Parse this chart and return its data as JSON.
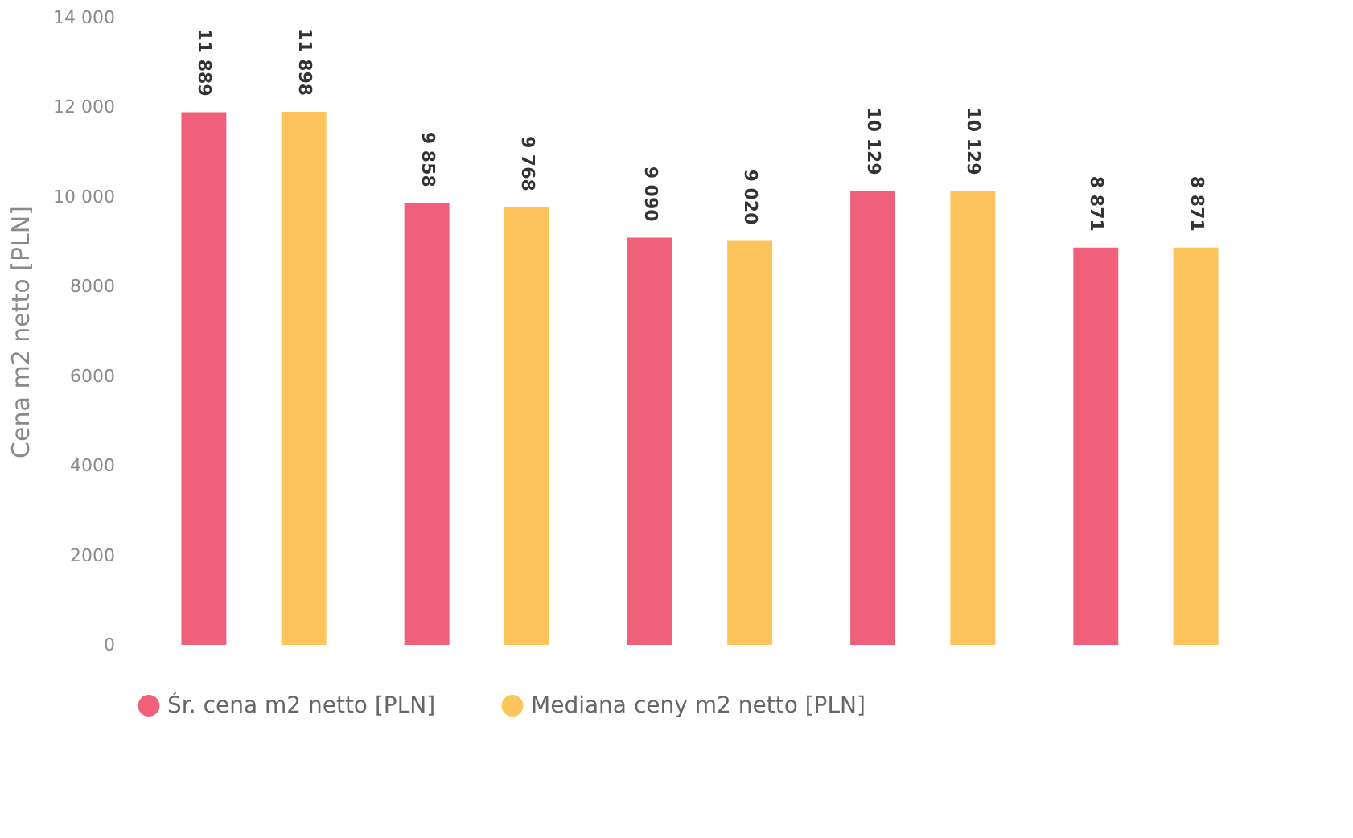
{
  "chart_data": {
    "type": "bar",
    "ylabel": "Cena m2 netto [PLN]",
    "categories": [
      null,
      null,
      null,
      null,
      null
    ],
    "series": [
      {
        "name": "Śr. cena m2 netto [PLN]",
        "color": "#f0607a",
        "values": [
          11889,
          9858,
          9090,
          10129,
          8871
        ],
        "value_labels": [
          "11 889",
          "9 858",
          "9 090",
          "10 129",
          "8 871"
        ]
      },
      {
        "name": "Mediana ceny m2 netto [PLN]",
        "color": "#fcc45a",
        "values": [
          11898,
          9768,
          9020,
          10129,
          8871
        ],
        "value_labels": [
          "11 898",
          "9 768",
          "9 020",
          "10 129",
          "8 871"
        ]
      }
    ],
    "ylim": [
      0,
      14000
    ],
    "yticks": [
      0,
      2000,
      4000,
      6000,
      8000,
      {
        "value": 10000,
        "label": "10 000"
      },
      {
        "value": 12000,
        "label": "12 000"
      },
      {
        "value": 14000,
        "label": "14 000"
      }
    ],
    "grid": false,
    "legend": "bottom",
    "tick_labels": "y"
  }
}
